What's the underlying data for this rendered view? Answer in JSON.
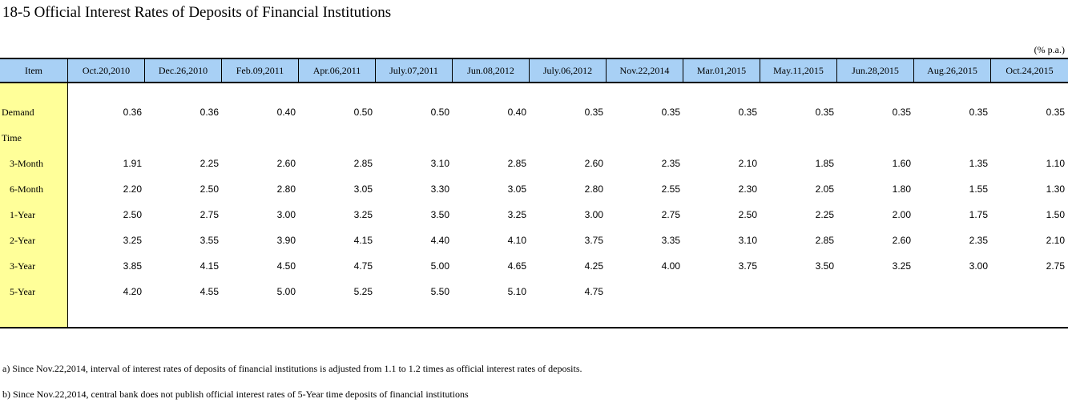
{
  "title": "18-5  Official Interest Rates of Deposits of Financial Institutions",
  "unit": "(% p.a.)",
  "table": {
    "item_header": "Item",
    "dates": [
      "Oct.20,2010",
      "Dec.26,2010",
      "Feb.09,2011",
      "Apr.06,2011",
      "July.07,2011",
      "Jun.08,2012",
      "July.06,2012",
      "Nov.22,2014",
      "Mar.01,2015",
      "May.11,2015",
      "Jun.28,2015",
      "Aug.26,2015",
      "Oct.24,2015"
    ],
    "rows": [
      {
        "label": "Demand",
        "values": [
          "0.36",
          "0.36",
          "0.40",
          "0.50",
          "0.50",
          "0.40",
          "0.35",
          "0.35",
          "0.35",
          "0.35",
          "0.35",
          "0.35",
          "0.35"
        ]
      },
      {
        "label": "Time",
        "values": [
          "",
          "",
          "",
          "",
          "",
          "",
          "",
          "",
          "",
          "",
          "",
          "",
          ""
        ]
      },
      {
        "label": "3-Month",
        "values": [
          "1.91",
          "2.25",
          "2.60",
          "2.85",
          "3.10",
          "2.85",
          "2.60",
          "2.35",
          "2.10",
          "1.85",
          "1.60",
          "1.35",
          "1.10"
        ]
      },
      {
        "label": "6-Month",
        "values": [
          "2.20",
          "2.50",
          "2.80",
          "3.05",
          "3.30",
          "3.05",
          "2.80",
          "2.55",
          "2.30",
          "2.05",
          "1.80",
          "1.55",
          "1.30"
        ]
      },
      {
        "label": "1-Year",
        "values": [
          "2.50",
          "2.75",
          "3.00",
          "3.25",
          "3.50",
          "3.25",
          "3.00",
          "2.75",
          "2.50",
          "2.25",
          "2.00",
          "1.75",
          "1.50"
        ]
      },
      {
        "label": "2-Year",
        "values": [
          "3.25",
          "3.55",
          "3.90",
          "4.15",
          "4.40",
          "4.10",
          "3.75",
          "3.35",
          "3.10",
          "2.85",
          "2.60",
          "2.35",
          "2.10"
        ]
      },
      {
        "label": "3-Year",
        "values": [
          "3.85",
          "4.15",
          "4.50",
          "4.75",
          "5.00",
          "4.65",
          "4.25",
          "4.00",
          "3.75",
          "3.50",
          "3.25",
          "3.00",
          "2.75"
        ]
      },
      {
        "label": "5-Year",
        "values": [
          "4.20",
          "4.55",
          "5.00",
          "5.25",
          "5.50",
          "5.10",
          "4.75",
          "",
          "",
          "",
          "",
          "",
          ""
        ]
      }
    ]
  },
  "notes": [
    "a) Since Nov.22,2014, interval of interest rates of deposits of financial institutions is adjusted from 1.1 to 1.2 times as official interest rates of deposits.",
    "b) Since Nov.22,2014, central bank does not publish official interest rates of 5-Year time deposits of financial institutions"
  ]
}
